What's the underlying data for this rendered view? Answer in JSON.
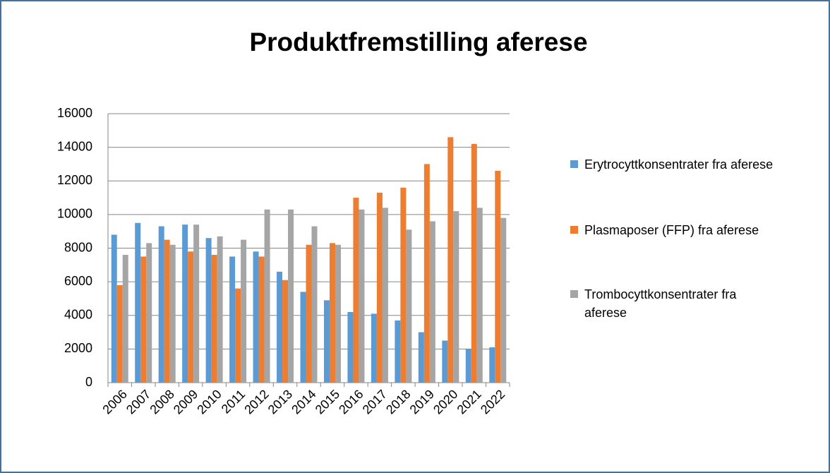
{
  "chart_data": {
    "type": "bar",
    "title": "Produktfremstilling aferese",
    "categories": [
      "2006",
      "2007",
      "2008",
      "2009",
      "2010",
      "2011",
      "2012",
      "2013",
      "2014",
      "2015",
      "2016",
      "2017",
      "2018",
      "2019",
      "2020",
      "2021",
      "2022"
    ],
    "series": [
      {
        "name": "Erytrocyttkonsentrater fra aferese",
        "color": "#5b9bd5",
        "values": [
          8800,
          9500,
          9300,
          9400,
          8600,
          7500,
          7800,
          6600,
          5400,
          4900,
          4200,
          4100,
          3700,
          3000,
          2500,
          2000,
          2100
        ]
      },
      {
        "name": "Plasmaposer (FFP) fra aferese",
        "color": "#ed7d31",
        "values": [
          5800,
          7500,
          8500,
          7800,
          7600,
          5600,
          7500,
          6100,
          8200,
          8300,
          11000,
          11300,
          11600,
          13000,
          14600,
          14200,
          12600
        ]
      },
      {
        "name": "Trombocyttkonsentrater fra aferese",
        "color": "#a5a5a5",
        "values": [
          7600,
          8300,
          8200,
          9400,
          8700,
          8500,
          10300,
          10300,
          9300,
          8200,
          10300,
          10400,
          9100,
          9600,
          10200,
          10400,
          9800
        ]
      }
    ],
    "ylim": [
      0,
      16000
    ],
    "yticks": [
      0,
      2000,
      4000,
      6000,
      8000,
      10000,
      12000,
      14000,
      16000
    ],
    "grid": true,
    "legend": "right"
  }
}
